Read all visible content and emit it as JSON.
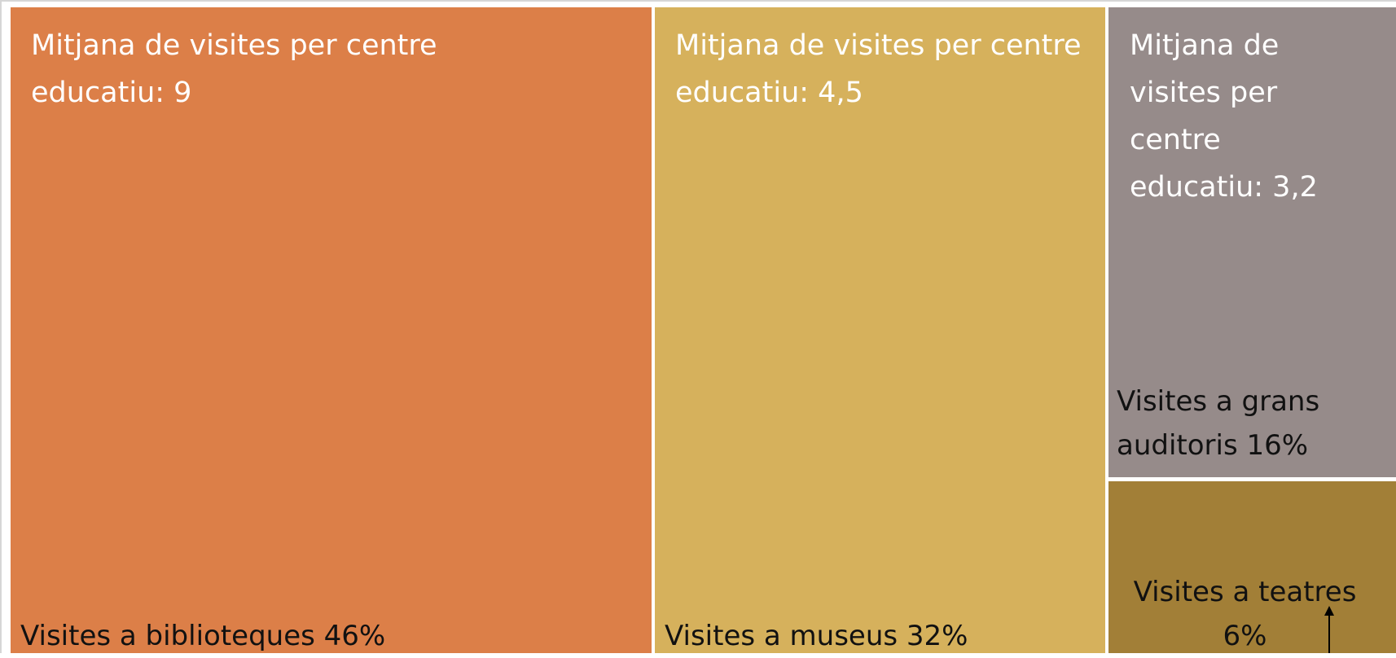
{
  "tiles": [
    {
      "note": "Mitjana de visites per centre educatiu: 9",
      "label": "Visites a biblioteques 46%"
    },
    {
      "note": "Mitjana de visites per centre educatiu: 4,5",
      "label": "Visites a museus 32%"
    },
    {
      "note": "Mitjana de visites per centre educatiu: 3,2",
      "label": "Visites a grans auditoris 16%"
    },
    {
      "label": "Visites a teatres 6%"
    }
  ]
}
